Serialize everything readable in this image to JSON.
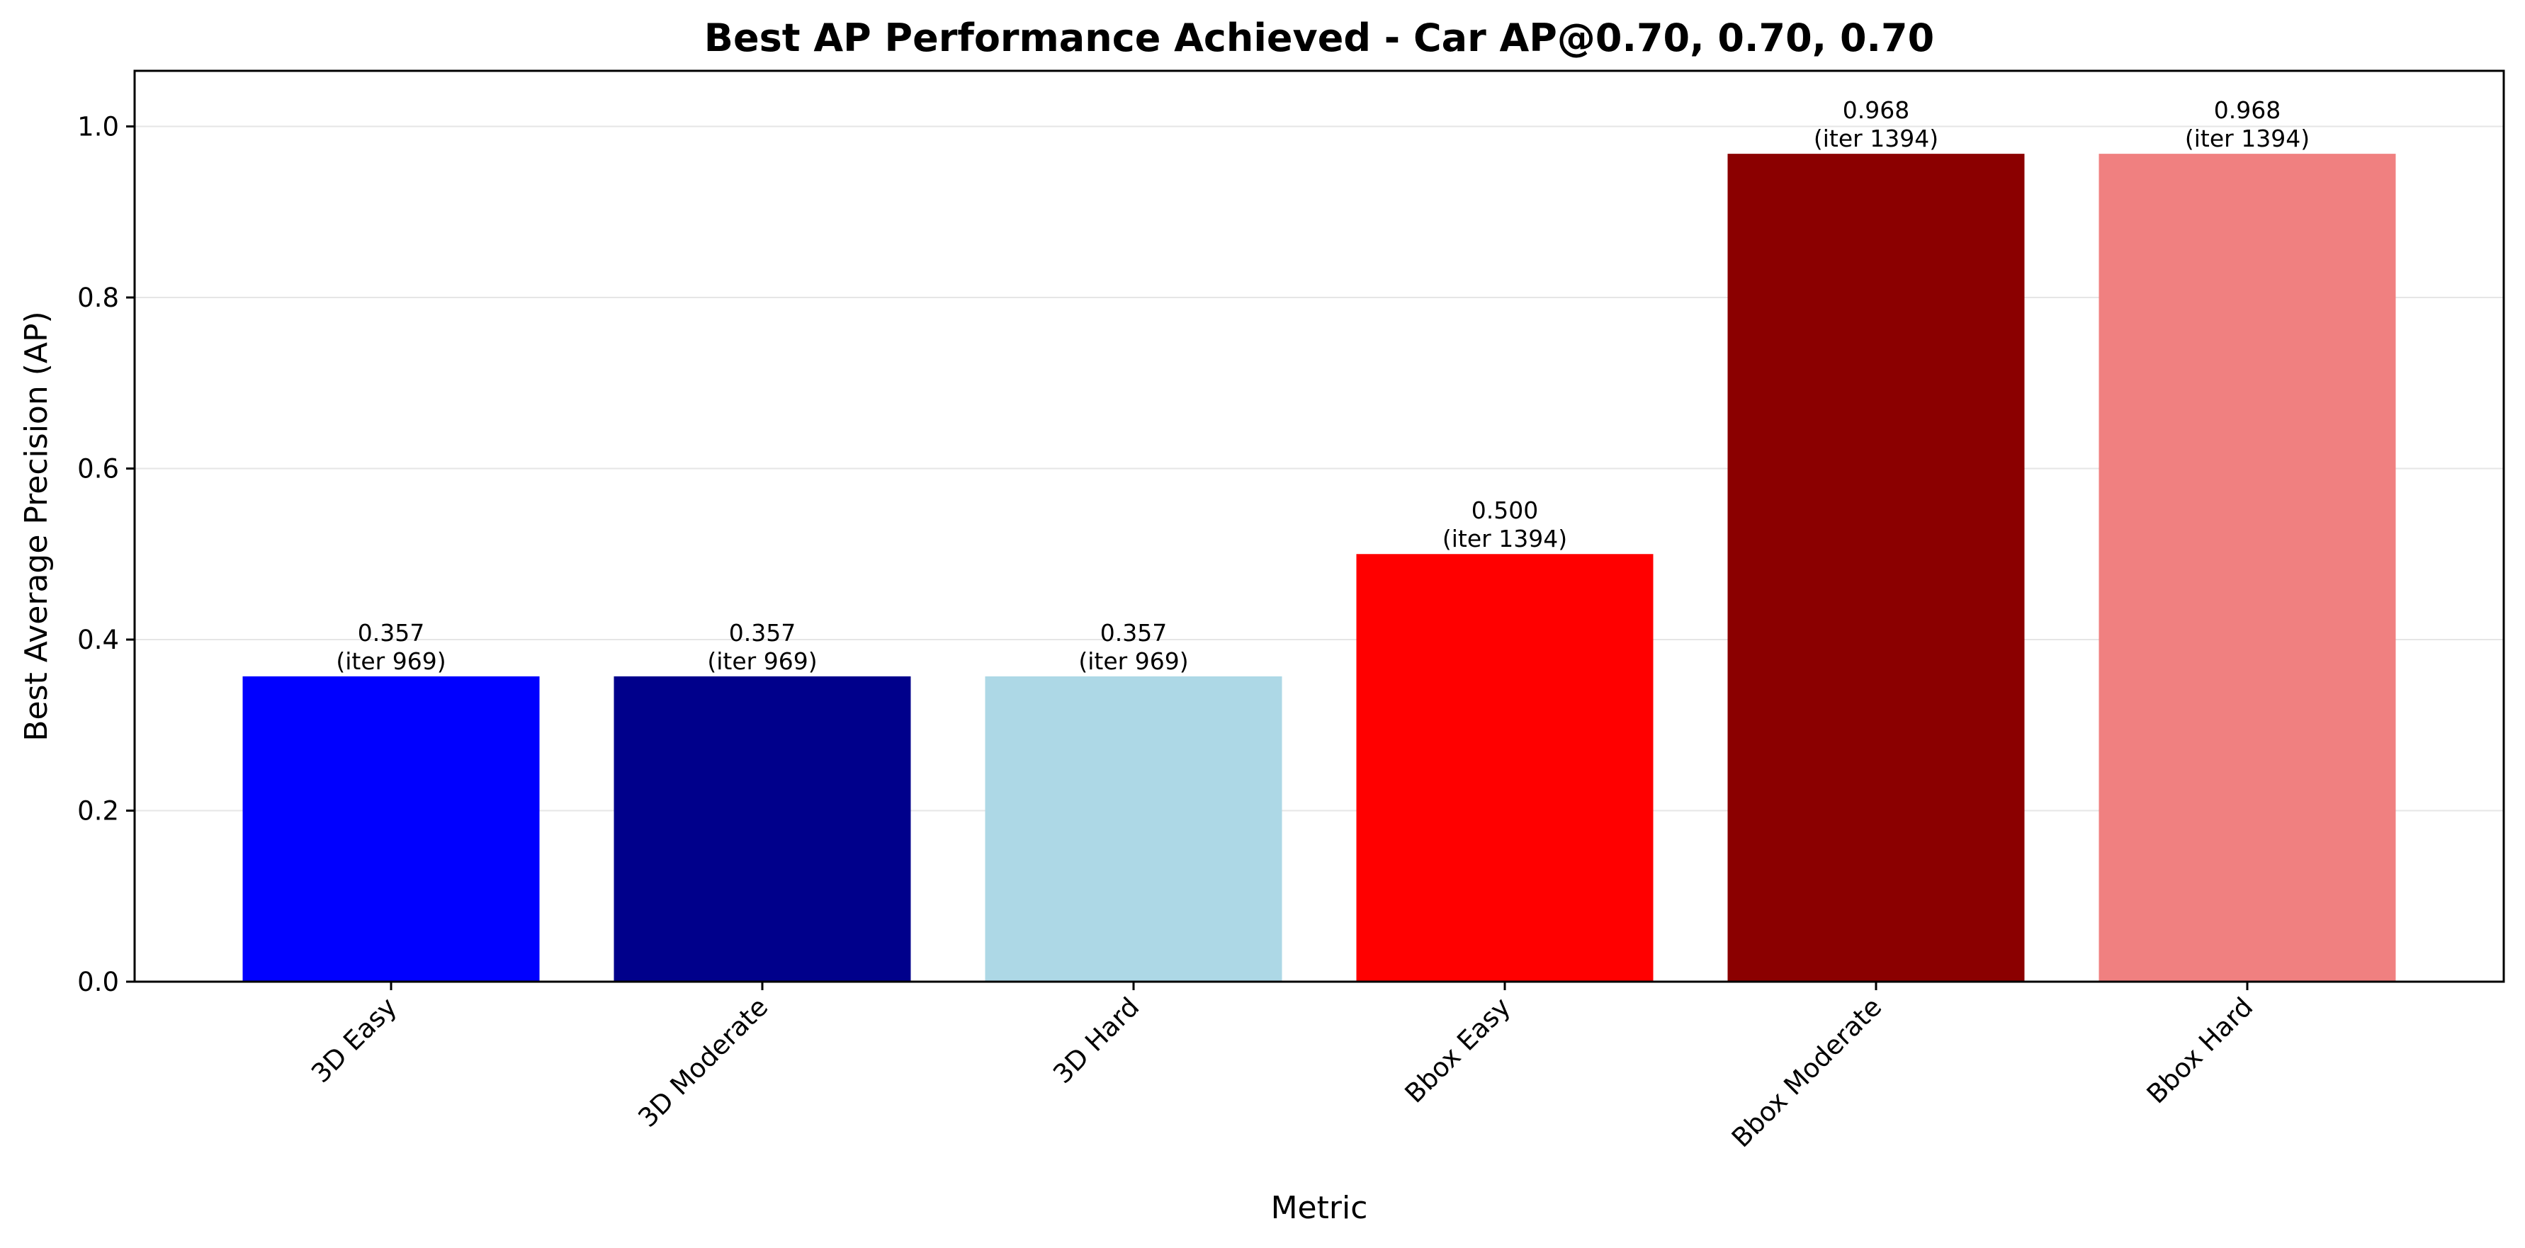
{
  "chart_data": {
    "type": "bar",
    "title": "Best AP Performance Achieved - Car AP@0.70, 0.70, 0.70",
    "xlabel": "Metric",
    "ylabel": "Best Average Precision (AP)",
    "categories": [
      "3D Easy",
      "3D Moderate",
      "3D Hard",
      "Bbox Easy",
      "Bbox Moderate",
      "Bbox Hard"
    ],
    "values": [
      0.357,
      0.357,
      0.357,
      0.5,
      0.968,
      0.968
    ],
    "value_labels": [
      "0.357",
      "0.357",
      "0.357",
      "0.500",
      "0.968",
      "0.968"
    ],
    "iteration_labels": [
      "(iter 969)",
      "(iter 969)",
      "(iter 969)",
      "(iter 1394)",
      "(iter 1394)",
      "(iter 1394)"
    ],
    "colors": [
      "#0000ff",
      "#00008b",
      "#add8e6",
      "#ff0000",
      "#8b0000",
      "#f08080"
    ],
    "ylim": [
      0,
      1.065
    ],
    "yticks": [
      0.0,
      0.2,
      0.4,
      0.6,
      0.8,
      1.0
    ],
    "ytick_labels": [
      "0.0",
      "0.2",
      "0.4",
      "0.6",
      "0.8",
      "1.0"
    ],
    "grid": "horizontal",
    "grid_color": "#e6e6e6"
  }
}
